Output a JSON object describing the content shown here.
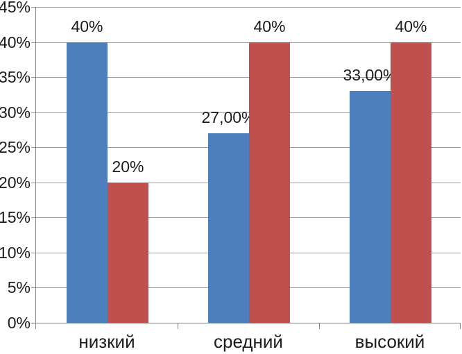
{
  "chart_data": {
    "type": "bar",
    "title": "",
    "xlabel": "",
    "ylabel": "",
    "categories": [
      "низкий",
      "средний",
      "высокий"
    ],
    "series": [
      {
        "name": "series-1-blue",
        "color": "#4d7ebd",
        "values": [
          40,
          27,
          33
        ],
        "data_labels": [
          "40%",
          "27,00%",
          "33,00%"
        ]
      },
      {
        "name": "series-2-red",
        "color": "#c0504d",
        "values": [
          20,
          40,
          40
        ],
        "data_labels": [
          "20%",
          "40%",
          "40%"
        ]
      }
    ],
    "ylim": [
      0,
      45
    ],
    "y_tick_step": 5,
    "y_tick_labels": [
      "0%",
      "5%",
      "10%",
      "15%",
      "20%",
      "25%",
      "30%",
      "35%",
      "40%",
      "45%"
    ],
    "grid": true,
    "legend": false,
    "decimal_separator": ",",
    "colors": {
      "series_blue": "#4d7ebd",
      "series_red": "#c0504d",
      "gridline": "#9b9b9b",
      "axis": "#7f7f7f",
      "label_text": "#1b1b1b",
      "background": "#ffffff"
    }
  }
}
